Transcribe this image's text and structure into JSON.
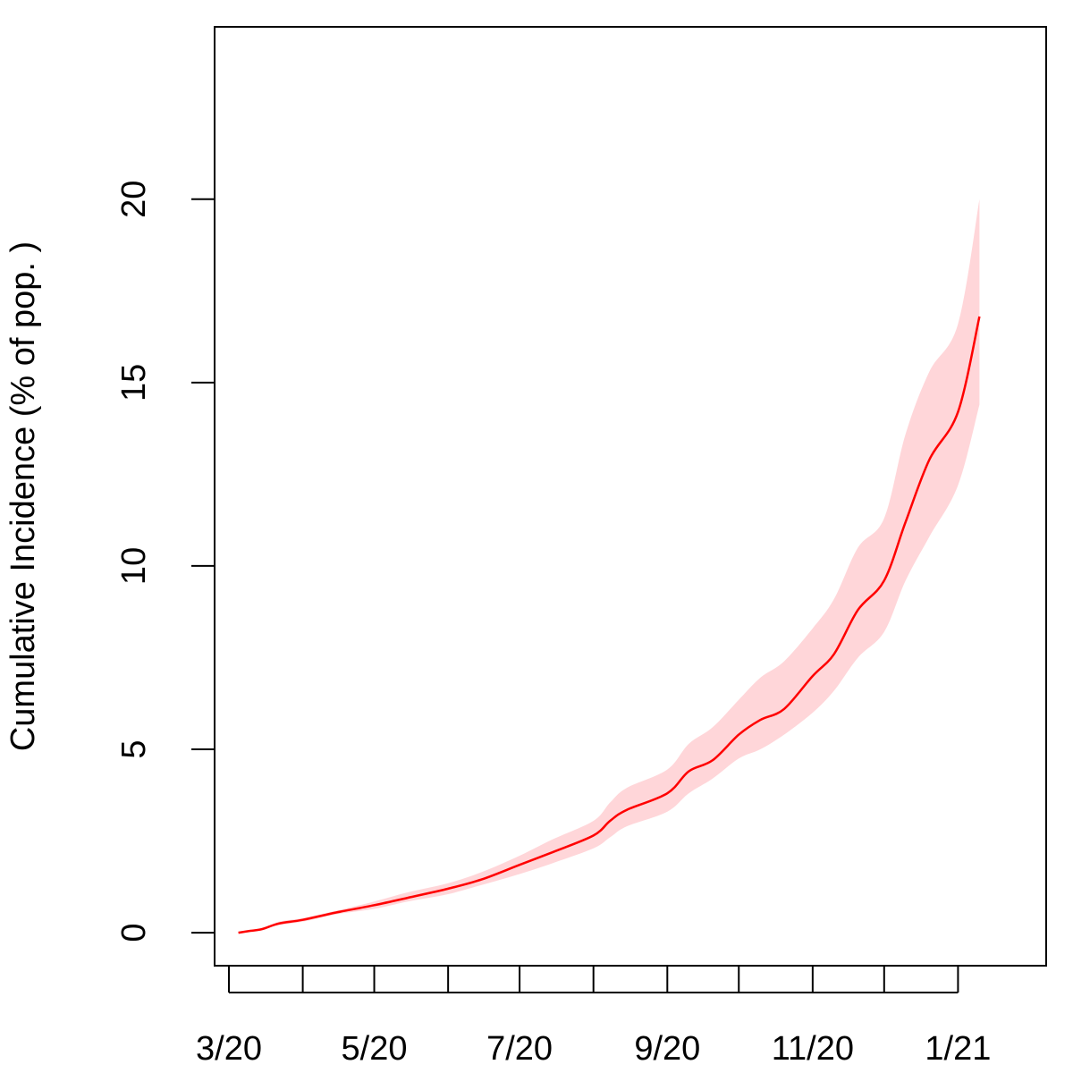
{
  "chart_data": {
    "type": "line",
    "ylabel": "Cumulative Incidence (% of pop. )",
    "xlabel": "",
    "title": "",
    "ylim": [
      -0.9,
      24.7
    ],
    "xlim": [
      "2020-02-24",
      "2021-02-07"
    ],
    "grid": false,
    "legend": "none",
    "colors": {
      "line": "#ff0000",
      "band": "#ffd6d9",
      "axis": "#000000"
    },
    "x_ticks": [
      {
        "date": "2020-03-01",
        "label": "3/20"
      },
      {
        "date": "2020-04-01",
        "label": ""
      },
      {
        "date": "2020-05-01",
        "label": "5/20"
      },
      {
        "date": "2020-06-01",
        "label": ""
      },
      {
        "date": "2020-07-01",
        "label": "7/20"
      },
      {
        "date": "2020-08-01",
        "label": ""
      },
      {
        "date": "2020-09-01",
        "label": "9/20"
      },
      {
        "date": "2020-10-01",
        "label": ""
      },
      {
        "date": "2020-11-01",
        "label": "11/20"
      },
      {
        "date": "2020-12-01",
        "label": ""
      },
      {
        "date": "2021-01-01",
        "label": "1/21"
      }
    ],
    "y_ticks": [
      {
        "value": 0,
        "label": "0"
      },
      {
        "value": 5,
        "label": "5"
      },
      {
        "value": 10,
        "label": "10"
      },
      {
        "value": 15,
        "label": "15"
      },
      {
        "value": 20,
        "label": "20"
      }
    ],
    "series": [
      {
        "x": [
          "2020-03-05",
          "2020-03-10",
          "2020-03-15",
          "2020-03-22",
          "2020-04-01",
          "2020-04-15",
          "2020-05-01",
          "2020-05-15",
          "2020-06-01",
          "2020-06-15",
          "2020-07-01",
          "2020-07-15",
          "2020-08-01",
          "2020-08-08",
          "2020-08-15",
          "2020-09-01",
          "2020-09-10",
          "2020-09-20",
          "2020-10-01",
          "2020-10-10",
          "2020-10-20",
          "2020-11-01",
          "2020-11-10",
          "2020-11-20",
          "2020-12-01",
          "2020-12-10",
          "2020-12-20",
          "2021-01-01",
          "2021-01-10"
        ],
        "y": [
          0,
          0.05,
          0.1,
          0.25,
          0.35,
          0.55,
          0.75,
          0.95,
          1.2,
          1.45,
          1.85,
          2.2,
          2.65,
          3.05,
          3.35,
          3.8,
          4.4,
          4.7,
          5.4,
          5.8,
          6.1,
          7.0,
          7.6,
          8.8,
          9.6,
          11.2,
          12.9,
          14.2,
          16.8
        ],
        "lower": [
          0,
          0.05,
          0.1,
          0.2,
          0.3,
          0.5,
          0.65,
          0.85,
          1.05,
          1.3,
          1.6,
          1.9,
          2.3,
          2.6,
          2.9,
          3.3,
          3.8,
          4.2,
          4.75,
          5.0,
          5.4,
          6.0,
          6.6,
          7.5,
          8.2,
          9.6,
          10.8,
          12.2,
          14.4
        ],
        "upper": [
          0,
          0.05,
          0.1,
          0.3,
          0.4,
          0.6,
          0.85,
          1.1,
          1.35,
          1.65,
          2.1,
          2.55,
          3.05,
          3.55,
          3.95,
          4.45,
          5.15,
          5.6,
          6.35,
          6.95,
          7.4,
          8.3,
          9.1,
          10.5,
          11.3,
          13.6,
          15.3,
          16.6,
          20.0
        ]
      }
    ]
  }
}
